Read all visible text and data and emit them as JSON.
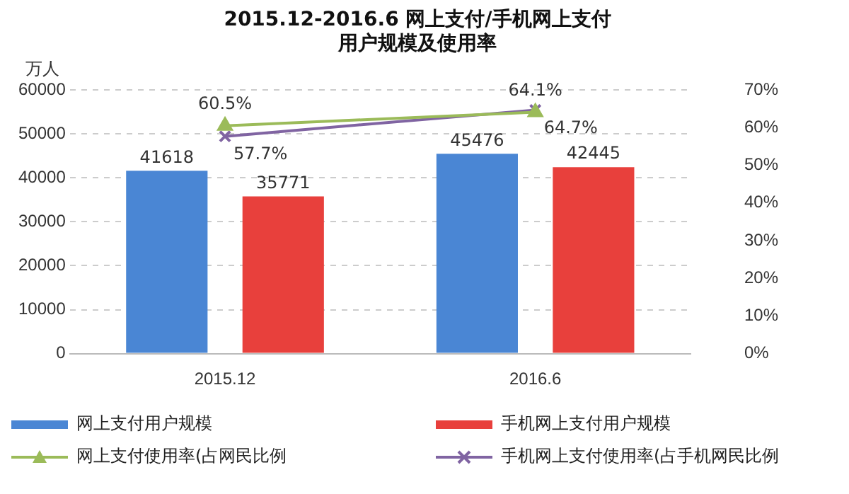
{
  "chart_data": {
    "type": "bar",
    "title": [
      "2015.12-2016.6 网上支付/手机网上支付",
      "用户规模及使用率"
    ],
    "ylabel": "万人",
    "categories": [
      "2015.12",
      "2016.6"
    ],
    "series": [
      {
        "name": "网上支付用户规模",
        "color": "#4a86d4",
        "values": [
          41618,
          45476
        ]
      },
      {
        "name": "手机网上支付用户规模",
        "color": "#e8403c",
        "values": [
          35771,
          42445
        ]
      },
      {
        "name": "网上支付使用率(占网民比例",
        "type": "line",
        "axis": "y2",
        "marker": "triangle",
        "color": "#9bbb59",
        "values": [
          60.5,
          64.1
        ],
        "value_labels": [
          "60.5%",
          "64.1%"
        ]
      },
      {
        "name": "手机网上支付使用率(占手机网民比例",
        "type": "line",
        "axis": "y2",
        "marker": "cross",
        "color": "#8064a2",
        "values": [
          57.7,
          64.7
        ],
        "value_labels": [
          "57.7%",
          "64.7%"
        ]
      }
    ],
    "data_labels": true,
    "ylim": [
      0,
      60000
    ],
    "yticks": [
      0,
      10000,
      20000,
      30000,
      40000,
      50000,
      60000
    ],
    "y2lim": [
      0,
      70
    ],
    "y2ticks": [
      {
        "value": 0,
        "label": "0%"
      },
      {
        "value": 10,
        "label": "10%"
      },
      {
        "value": 20,
        "label": "20%"
      },
      {
        "value": 30,
        "label": "30%"
      },
      {
        "value": 40,
        "label": "40%"
      },
      {
        "value": 50,
        "label": "50%"
      },
      {
        "value": 60,
        "label": "60%"
      },
      {
        "value": 70,
        "label": "70%"
      }
    ],
    "grid": "y",
    "legend": "bottom"
  }
}
